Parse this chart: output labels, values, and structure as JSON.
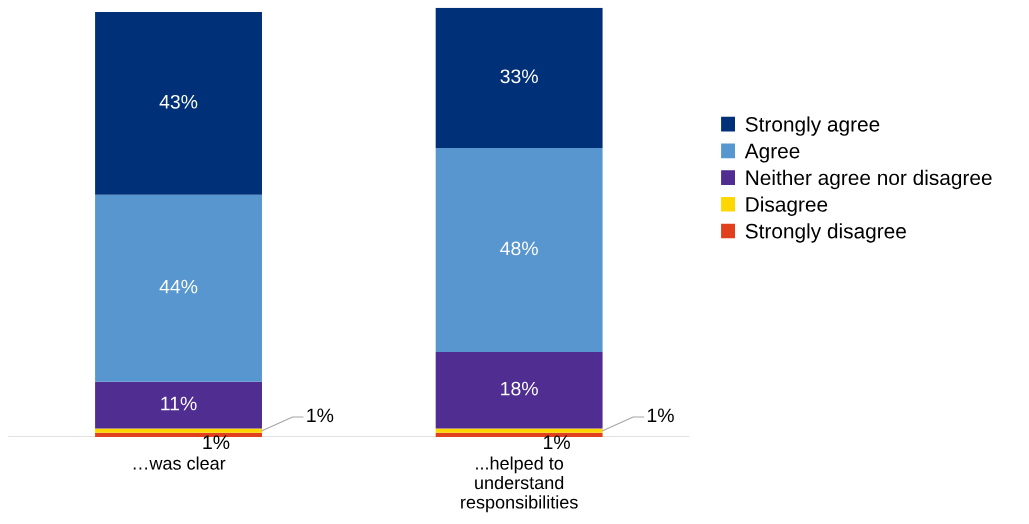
{
  "chart_data": {
    "type": "bar",
    "stacked": true,
    "legend": "right",
    "categories": [
      "…was clear",
      "...helped to\nunderstand\nresponsibilities"
    ],
    "series": [
      {
        "name": "Strongly disagree",
        "color": "#e0401c",
        "values": [
          1,
          1
        ],
        "value_labels": [
          "1%",
          "1%"
        ]
      },
      {
        "name": "Disagree",
        "color": "#ffd700",
        "values": [
          1,
          1
        ],
        "value_labels": [
          "1%",
          "1%"
        ]
      },
      {
        "name": "Neither agree nor disagree",
        "color": "#4f2d91",
        "values": [
          11,
          18
        ],
        "value_labels": [
          "11%",
          "18%"
        ]
      },
      {
        "name": "Agree",
        "color": "#5896cf",
        "values": [
          44,
          48
        ],
        "value_labels": [
          "44%",
          "48%"
        ]
      },
      {
        "name": "Strongly agree",
        "color": "#003078",
        "values": [
          43,
          33
        ],
        "value_labels": [
          "43%",
          "33%"
        ]
      }
    ]
  }
}
